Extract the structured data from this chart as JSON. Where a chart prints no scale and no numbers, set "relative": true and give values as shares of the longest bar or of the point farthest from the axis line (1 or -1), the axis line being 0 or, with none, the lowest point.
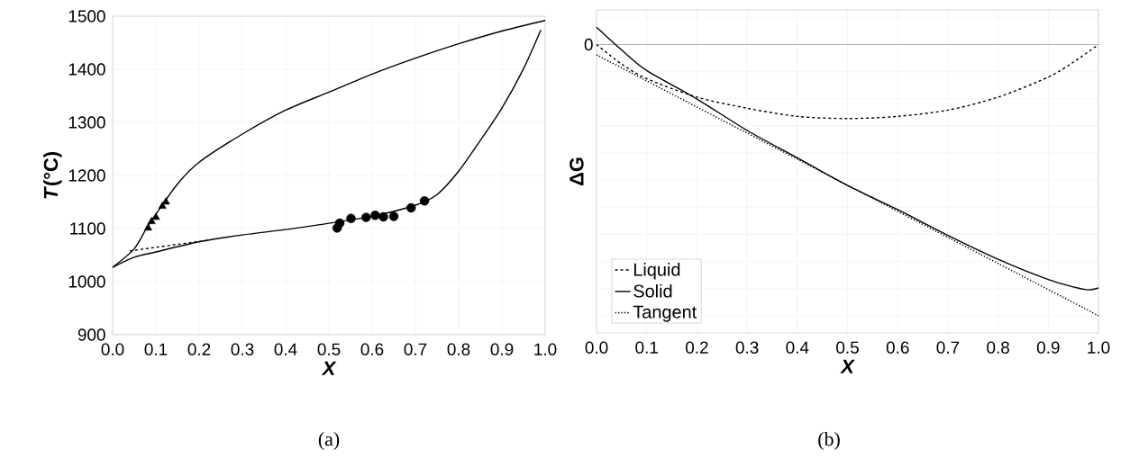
{
  "chart_data": [
    {
      "type": "line",
      "xlabel": "X",
      "ylabel": "*T*(°C)",
      "xlim": [
        0,
        1
      ],
      "ylim": [
        900,
        1500
      ],
      "xticks": [
        {
          "value": 0,
          "label": "0.0"
        },
        {
          "value": 0.1,
          "label": "0.1"
        },
        {
          "value": 0.2,
          "label": "0.2"
        },
        {
          "value": 0.3,
          "label": "0.3"
        },
        {
          "value": 0.4,
          "label": "0.4"
        },
        {
          "value": 0.5,
          "label": "0.5"
        },
        {
          "value": 0.6,
          "label": "0.6"
        },
        {
          "value": 0.7,
          "label": "0.7"
        },
        {
          "value": 0.8,
          "label": "0.8"
        },
        {
          "value": 0.9,
          "label": "0.9"
        },
        {
          "value": 1,
          "label": "1.0"
        }
      ],
      "yticks": [
        900,
        1000,
        1100,
        1200,
        1300,
        1400,
        1500
      ],
      "grid": true,
      "annotations": [
        "(a)"
      ],
      "series": [
        {
          "color": "#000000",
          "line_style": "solid",
          "marker": "none",
          "x": [
            0,
            0.05,
            0.08,
            0.1,
            0.15,
            0.2,
            0.3,
            0.4,
            0.5,
            0.6,
            0.7,
            0.8,
            0.9,
            1.0
          ],
          "values": [
            1027,
            1062,
            1103,
            1127,
            1184,
            1225,
            1278,
            1323,
            1357,
            1391,
            1421,
            1448,
            1472,
            1492
          ]
        },
        {
          "color": "#000000",
          "line_style": "solid",
          "marker": "none",
          "x": [
            0,
            0.05,
            0.1,
            0.2,
            0.3,
            0.4,
            0.5,
            0.6,
            0.7,
            0.75,
            0.8,
            0.85,
            0.9,
            0.95,
            0.99
          ],
          "values": [
            1027,
            1046,
            1056,
            1075,
            1088,
            1098,
            1110,
            1123,
            1144,
            1164,
            1208,
            1266,
            1327,
            1401,
            1474
          ]
        },
        {
          "color": "#000000",
          "line_style": "dashed",
          "marker": "none",
          "x": [
            0.04,
            0.22
          ],
          "values": [
            1058,
            1078
          ]
        },
        {
          "type": "scatter",
          "color": "#000000",
          "marker": "triangle",
          "x": [
            0.082,
            0.09,
            0.1,
            0.115,
            0.123
          ],
          "values": [
            1101,
            1113,
            1121,
            1142,
            1150
          ]
        },
        {
          "type": "scatter",
          "color": "#000000",
          "marker": "circle",
          "x": [
            0.519,
            0.525,
            0.551,
            0.586,
            0.607,
            0.626,
            0.65,
            0.69,
            0.721
          ],
          "values": [
            1101,
            1110,
            1119,
            1121,
            1125,
            1122,
            1123,
            1139,
            1152
          ]
        }
      ]
    },
    {
      "type": "line",
      "xlabel": "X",
      "ylabel": "ΔG",
      "relative": true,
      "xlim": [
        0,
        1
      ],
      "xticks": [
        {
          "value": 0,
          "label": "0.0"
        },
        {
          "value": 0.1,
          "label": "0.1"
        },
        {
          "value": 0.2,
          "label": "0.2"
        },
        {
          "value": 0.3,
          "label": "0.3"
        },
        {
          "value": 0.4,
          "label": "0.4"
        },
        {
          "value": 0.5,
          "label": "0.5"
        },
        {
          "value": 0.6,
          "label": "0.6"
        },
        {
          "value": 0.7,
          "label": "0.7"
        },
        {
          "value": 0.8,
          "label": "0.8"
        },
        {
          "value": 0.9,
          "label": "0.9"
        },
        {
          "value": 1,
          "label": "1.0"
        }
      ],
      "grid": true,
      "legend": "bottom left",
      "annotations": [
        "(b)"
      ],
      "ref_lines": [
        {
          "axis": "y",
          "value": 0,
          "label": "0",
          "color": "#808080"
        }
      ],
      "series": [
        {
          "name": "Liquid",
          "color": "#000000",
          "line_style": "dashed",
          "x": [
            0,
            0.05,
            0.1,
            0.2,
            0.3,
            0.4,
            0.5,
            0.6,
            0.7,
            0.8,
            0.9,
            0.95,
            1.0
          ],
          "values": [
            0,
            -0.072,
            -0.126,
            -0.194,
            -0.235,
            -0.265,
            -0.273,
            -0.265,
            -0.242,
            -0.194,
            -0.12,
            -0.065,
            0
          ]
        },
        {
          "name": "Solid",
          "color": "#000000",
          "line_style": "solid",
          "x": [
            0,
            0.05,
            0.1,
            0.2,
            0.3,
            0.4,
            0.5,
            0.6,
            0.7,
            0.8,
            0.9,
            0.95,
            0.98,
            1.0
          ],
          "values": [
            0.064,
            -0.02,
            -0.096,
            -0.201,
            -0.317,
            -0.418,
            -0.52,
            -0.609,
            -0.704,
            -0.792,
            -0.867,
            -0.894,
            -0.905,
            -0.898
          ]
        },
        {
          "name": "Tangent",
          "color": "#000000",
          "line_style": "dotted",
          "x": [
            0,
            1
          ],
          "values": [
            -0.038,
            -1
          ]
        }
      ]
    }
  ]
}
